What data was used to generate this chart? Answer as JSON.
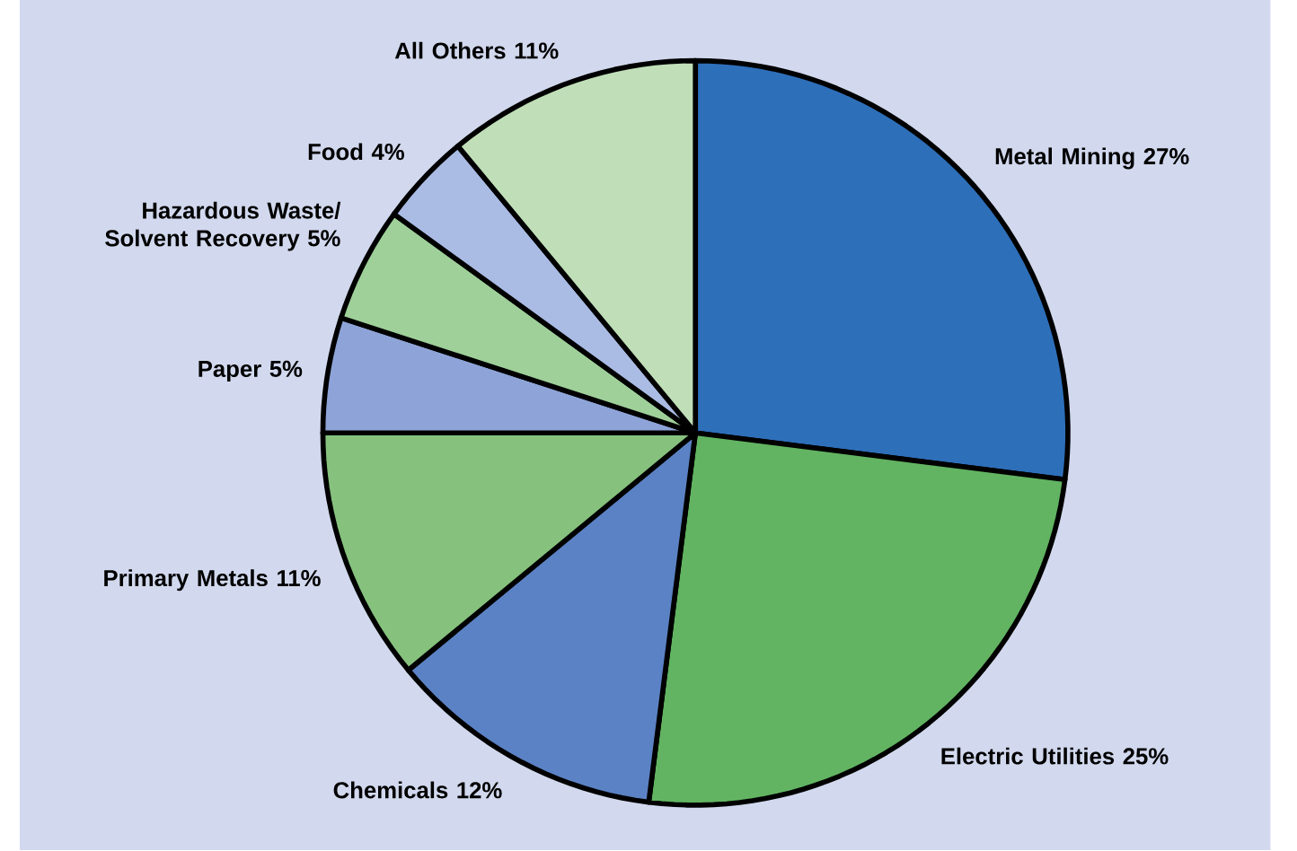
{
  "chart_data": {
    "type": "pie",
    "categories": [
      "Metal Mining",
      "Electric Utilities",
      "Chemicals",
      "Primary Metals",
      "Paper",
      "Hazardous Waste/ Solvent Recovery",
      "Food",
      "All Others"
    ],
    "values": [
      27,
      25,
      12,
      11,
      5,
      5,
      4,
      11
    ],
    "value_labels": [
      "27%",
      "25%",
      "12%",
      "11%",
      "5%",
      "5%",
      "4%",
      "11%"
    ],
    "colors": [
      "#2e6fba",
      "#62b462",
      "#5b82c4",
      "#86c27e",
      "#8ea4d8",
      "#9fd09a",
      "#aabbe4",
      "#c0dfb8"
    ]
  }
}
